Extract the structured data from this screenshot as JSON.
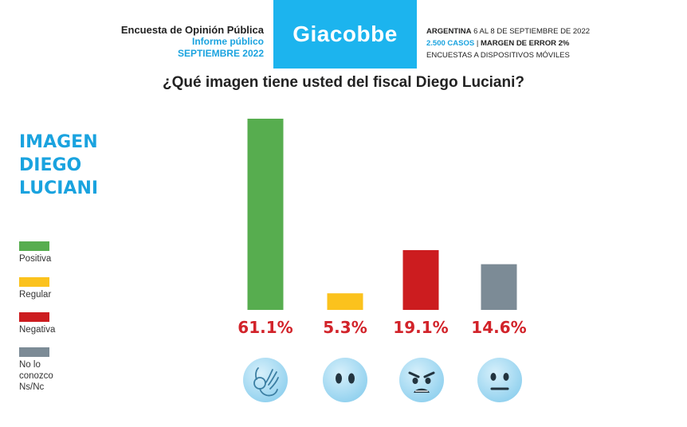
{
  "header": {
    "left_line1": "Encuesta de Opinión Pública",
    "left_line2": "Informe público",
    "left_line3": "SEPTIEMBRE 2022",
    "brand": "Giacobbe",
    "right_country": "ARGENTINA",
    "right_dates": " 6 AL 8 DE SEPTIEMBRE DE 2022",
    "right_cases": "2.500 CASOS",
    "right_sep": " | ",
    "right_margin": "MARGEN DE ERROR 2%",
    "right_line3": "ENCUESTAS A DISPOSITIVOS MÓVILES"
  },
  "question": "¿Qué imagen tiene usted del fiscal Diego Luciani?",
  "side_title": [
    "IMAGEN",
    "DIEGO",
    "LUCIANI"
  ],
  "legend": [
    {
      "label": "Positiva",
      "color": "#57ad4f"
    },
    {
      "label": "Regular",
      "color": "#fbc21d"
    },
    {
      "label": "Negativa",
      "color": "#cc1c1f"
    },
    {
      "label": "No lo conozco\nNs/Nc",
      "color": "#7c8b96"
    }
  ],
  "chart_data": {
    "type": "bar",
    "categories": [
      "Positiva",
      "Regular",
      "Negativa",
      "No lo conozco Ns/Nc"
    ],
    "values": [
      61.1,
      5.3,
      19.1,
      14.6
    ],
    "labels": [
      "61.1%",
      "5.3%",
      "19.1%",
      "14.6%"
    ],
    "colors": [
      "#57ad4f",
      "#fbc21d",
      "#cc1c1f",
      "#7c8b96"
    ],
    "label_color": "#d2232a",
    "ylim": [
      0,
      61.1
    ],
    "grid": false,
    "icons": [
      "ok-hand-icon",
      "neutral-eyes-icon",
      "angry-face-icon",
      "expressionless-face-icon"
    ]
  }
}
